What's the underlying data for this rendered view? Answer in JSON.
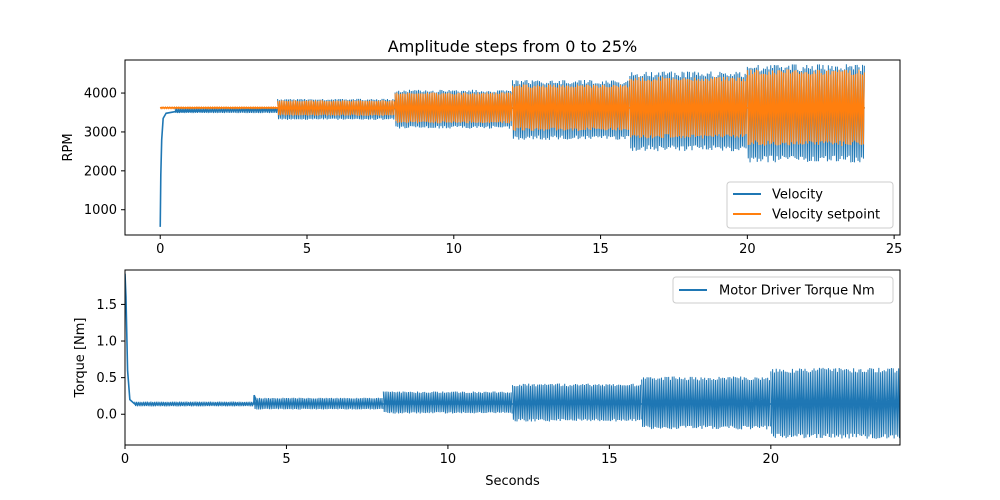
{
  "chart_data": [
    {
      "type": "line",
      "title": "Amplitude steps from 0 to 25%",
      "xlabel": "",
      "ylabel": "RPM",
      "xlim": [
        -1.2,
        25.2
      ],
      "ylim": [
        350,
        4850
      ],
      "xticks": [
        0,
        5,
        10,
        15,
        20,
        25
      ],
      "yticks": [
        1000,
        2000,
        3000,
        4000
      ],
      "legend": "lower-right",
      "series": [
        {
          "name": "Velocity",
          "color": "#1f77b4",
          "x": [
            0,
            0.02,
            0.05,
            0.1,
            0.2,
            0.5,
            1.0,
            2.0,
            3.0,
            3.99,
            4.0,
            7.99,
            8.0,
            11.99,
            12.0,
            15.99,
            16.0,
            19.99,
            20.0,
            24.0
          ],
          "y": [
            560,
            1900,
            2800,
            3350,
            3480,
            3520,
            3530,
            3550,
            3570,
            3580,
            3580,
            3600,
            3600,
            3610,
            3610,
            3620,
            3620,
            3620,
            3620,
            3620
          ],
          "band": [
            {
              "x0": 0.5,
              "x1": 4.0,
              "low": 3490,
              "high": 3620
            },
            {
              "x0": 4.0,
              "x1": 8.0,
              "low": 3330,
              "high": 3830
            },
            {
              "x0": 8.0,
              "x1": 12.0,
              "low": 3120,
              "high": 4050
            },
            {
              "x0": 12.0,
              "x1": 16.0,
              "low": 2850,
              "high": 4280
            },
            {
              "x0": 16.0,
              "x1": 20.0,
              "low": 2580,
              "high": 4480
            },
            {
              "x0": 20.0,
              "x1": 24.0,
              "low": 2300,
              "high": 4650
            }
          ]
        },
        {
          "name": "Velocity setpoint",
          "color": "#ff7f0e",
          "x": [
            0,
            4.0,
            8.0,
            12.0,
            16.0,
            20.0,
            24.0
          ],
          "y": [
            3620,
            3620,
            3620,
            3620,
            3620,
            3620,
            3620
          ],
          "band": [
            {
              "x0": 0.0,
              "x1": 4.0,
              "low": 3600,
              "high": 3640
            },
            {
              "x0": 4.0,
              "x1": 8.0,
              "low": 3430,
              "high": 3800
            },
            {
              "x0": 8.0,
              "x1": 12.0,
              "low": 3250,
              "high": 3990
            },
            {
              "x0": 12.0,
              "x1": 16.0,
              "low": 3070,
              "high": 4180
            },
            {
              "x0": 16.0,
              "x1": 20.0,
              "low": 2890,
              "high": 4360
            },
            {
              "x0": 20.0,
              "x1": 24.0,
              "low": 2710,
              "high": 4540
            }
          ]
        }
      ]
    },
    {
      "type": "line",
      "title": "",
      "xlabel": "Seconds",
      "ylabel": "Torque [Nm]",
      "xlim": [
        0,
        24
      ],
      "ylim": [
        -0.42,
        1.97
      ],
      "xticks": [
        0,
        5,
        10,
        15,
        20
      ],
      "yticks": [
        0.0,
        0.5,
        1.0,
        1.5
      ],
      "ytick_labels": [
        "0.0",
        "0.5",
        "1.0",
        "1.5"
      ],
      "legend": "top-right",
      "series": [
        {
          "name": "Motor Driver Torque Nm",
          "color": "#1f77b4",
          "x": [
            0,
            0.03,
            0.08,
            0.15,
            0.3,
            1.0,
            2.0,
            3.0,
            3.99,
            4.0,
            4.1,
            8.0,
            12.0,
            16.0,
            20.0,
            24.0
          ],
          "y": [
            1.92,
            1.6,
            0.6,
            0.2,
            0.14,
            0.14,
            0.14,
            0.14,
            0.14,
            0.26,
            0.14,
            0.14,
            0.14,
            0.14,
            0.14,
            0.14
          ],
          "band": [
            {
              "x0": 0.3,
              "x1": 4.0,
              "low": 0.11,
              "high": 0.17
            },
            {
              "x0": 4.0,
              "x1": 8.0,
              "low": 0.07,
              "high": 0.22
            },
            {
              "x0": 8.0,
              "x1": 12.0,
              "low": 0.02,
              "high": 0.3
            },
            {
              "x0": 12.0,
              "x1": 16.0,
              "low": -0.08,
              "high": 0.4
            },
            {
              "x0": 16.0,
              "x1": 20.0,
              "low": -0.18,
              "high": 0.49
            },
            {
              "x0": 20.0,
              "x1": 24.0,
              "low": -0.3,
              "high": 0.6
            }
          ]
        }
      ]
    }
  ]
}
